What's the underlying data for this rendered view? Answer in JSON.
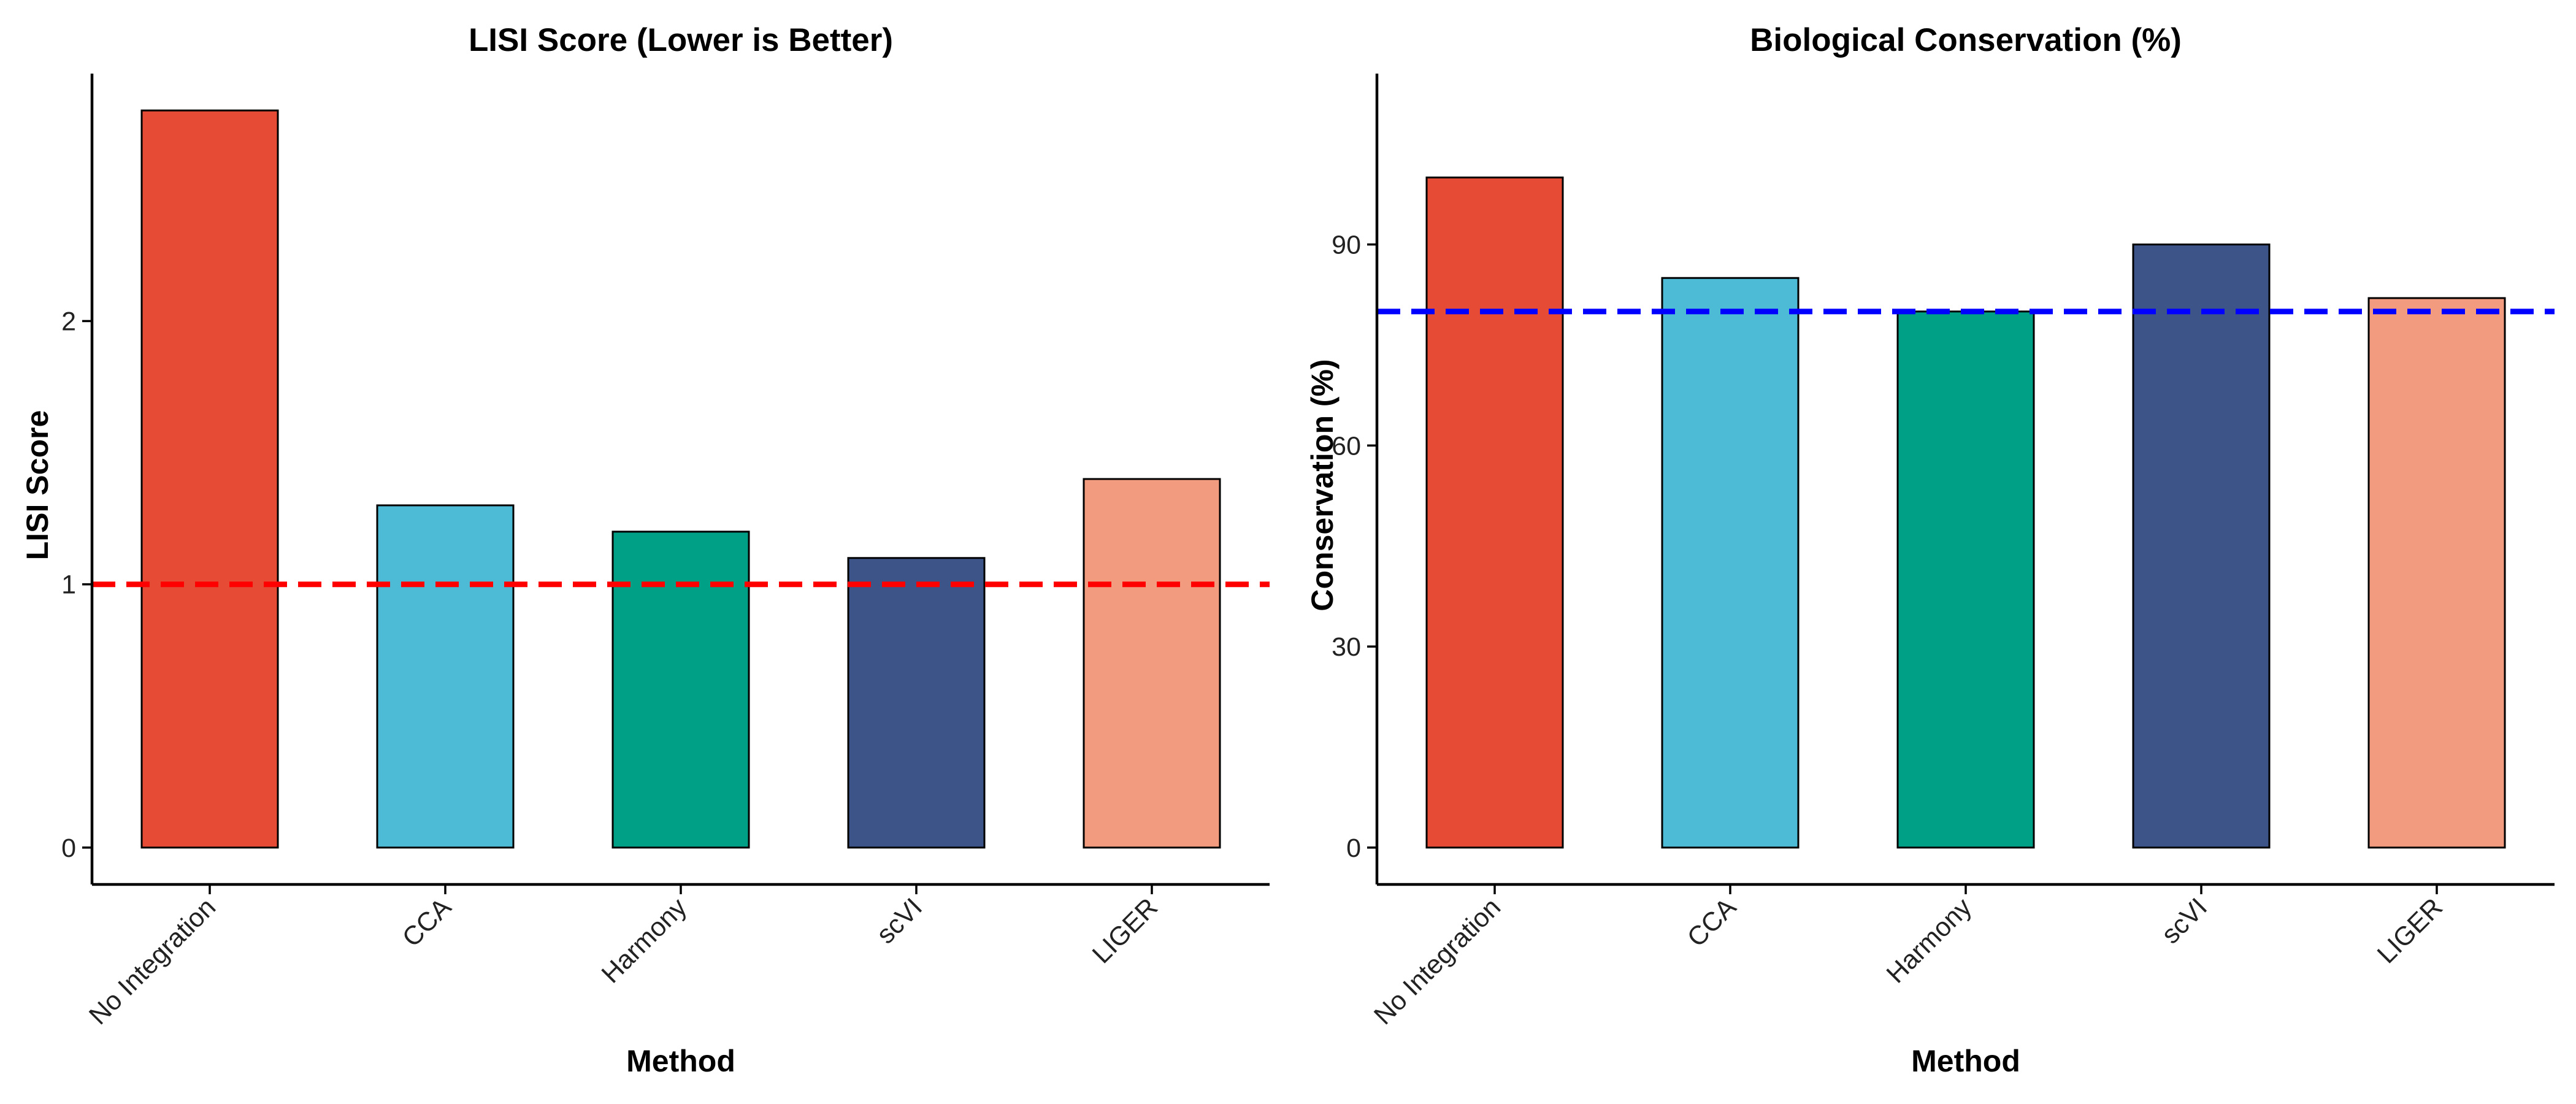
{
  "colors": {
    "No Integration": "#E64B35",
    "CCA": "#4DBBD5",
    "Harmony": "#00A087",
    "scVI": "#3C5488",
    "LIGER": "#F39B7F"
  },
  "chart_data": [
    {
      "type": "bar",
      "title": "LISI Score (Lower is Better)",
      "xlabel": "Method",
      "ylabel": "LISI Score",
      "categories": [
        "No Integration",
        "CCA",
        "Harmony",
        "scVI",
        "LIGER"
      ],
      "values": [
        2.8,
        1.3,
        1.2,
        1.1,
        1.4
      ],
      "ylim": [
        -0.14,
        2.94
      ],
      "yticks": [
        0,
        1,
        2
      ],
      "ytick_labels": [
        "0",
        "1",
        "2"
      ],
      "reference_line": {
        "value": 1,
        "color": "#FF0000",
        "style": "dashed"
      },
      "grid": false,
      "legend": "none"
    },
    {
      "type": "bar",
      "title": "Biological Conservation (%)",
      "xlabel": "Method",
      "ylabel": "Conservation (%)",
      "categories": [
        "No Integration",
        "CCA",
        "Harmony",
        "scVI",
        "LIGER"
      ],
      "values": [
        100,
        85,
        80,
        90,
        82
      ],
      "ylim": [
        -5.5,
        115.5
      ],
      "yticks": [
        0,
        30,
        60,
        90
      ],
      "ytick_labels": [
        "0",
        "30",
        "60",
        "90"
      ],
      "reference_line": {
        "value": 80,
        "color": "#0000FF",
        "style": "dashed"
      },
      "grid": false,
      "legend": "none"
    }
  ]
}
